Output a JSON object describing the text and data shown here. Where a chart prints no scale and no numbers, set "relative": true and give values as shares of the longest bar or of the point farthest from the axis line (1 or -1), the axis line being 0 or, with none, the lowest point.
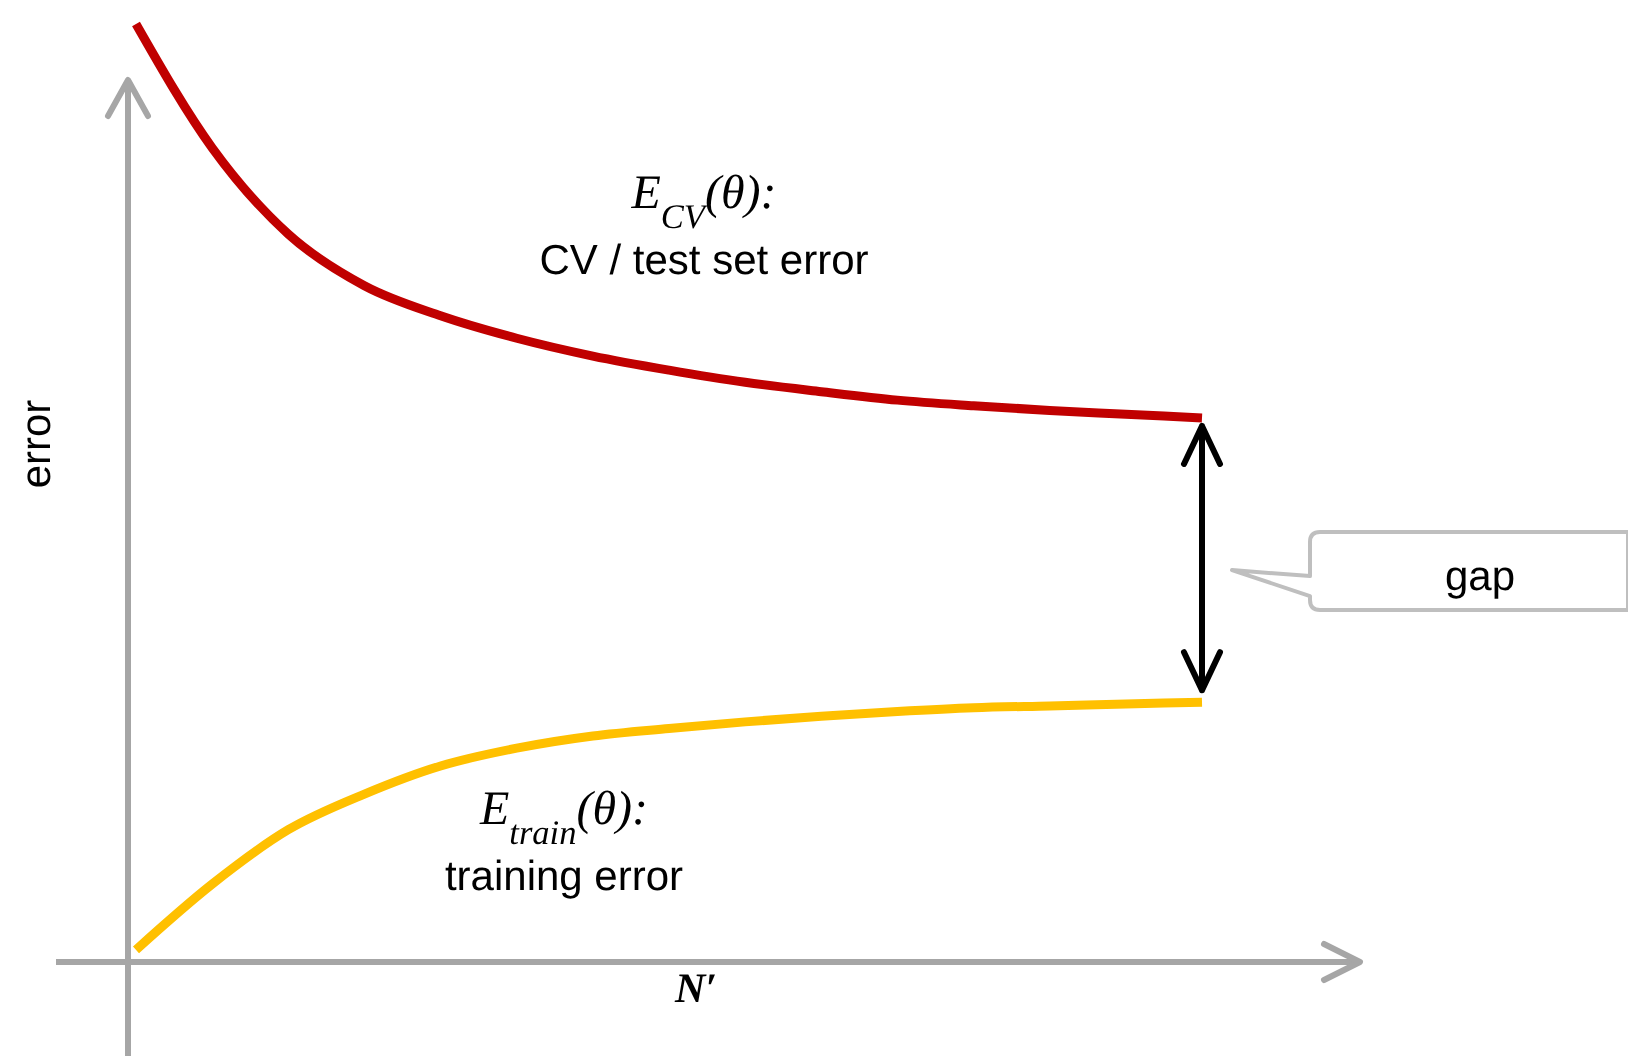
{
  "chart_data": {
    "type": "line",
    "relative": true,
    "xlabel": "N′",
    "ylabel": "error",
    "categories": [
      null,
      null,
      null,
      null,
      null,
      null,
      null,
      null,
      null,
      null,
      null,
      null,
      null,
      null,
      null
    ],
    "series": [
      {
        "name": "E$_{CV}$(θ):\nCV / test set error",
        "color": "#c00000",
        "values": [
          1.0,
          0.868,
          0.776,
          0.721,
          0.689,
          0.665,
          0.646,
          0.631,
          0.618,
          0.608,
          0.599,
          0.593,
          0.588,
          0.584,
          0.58
        ]
      },
      {
        "name": "E$_{train}$(θ):\ntraining error",
        "color": "#ffc000",
        "values": [
          0.013,
          0.083,
          0.141,
          0.179,
          0.209,
          0.228,
          0.241,
          0.249,
          0.256,
          0.262,
          0.267,
          0.271,
          0.273,
          0.275,
          0.277
        ]
      }
    ],
    "annotations": [
      "gap"
    ]
  }
}
